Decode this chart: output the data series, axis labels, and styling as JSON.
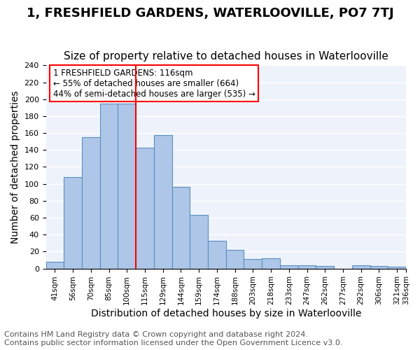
{
  "title": "1, FRESHFIELD GARDENS, WATERLOOVILLE, PO7 7TJ",
  "subtitle": "Size of property relative to detached houses in Waterlooville",
  "xlabel": "Distribution of detached houses by size in Waterlooville",
  "ylabel": "Number of detached properties",
  "bar_values": [
    8,
    108,
    155,
    195,
    195,
    143,
    158,
    96,
    63,
    33,
    22,
    11,
    12,
    4,
    4,
    3,
    0,
    4,
    3,
    2
  ],
  "bar_labels": [
    "41sqm",
    "56sqm",
    "70sqm",
    "85sqm",
    "100sqm",
    "115sqm",
    "129sqm",
    "144sqm",
    "159sqm",
    "174sqm",
    "188sqm",
    "203sqm",
    "218sqm",
    "233sqm",
    "247sqm",
    "262sqm",
    "277sqm",
    "292sqm",
    "306sqm",
    "321sqm"
  ],
  "extra_tick_label": "336sqm",
  "bar_color": "#aec6e8",
  "bar_edge_color": "#5a8fc2",
  "property_line_x": 4.5,
  "annotation_text": "1 FRESHFIELD GARDENS: 116sqm\n← 55% of detached houses are smaller (664)\n44% of semi-detached houses are larger (535) →",
  "annotation_box_color": "white",
  "annotation_box_edge_color": "red",
  "vline_color": "red",
  "ylim": [
    0,
    240
  ],
  "yticks": [
    0,
    20,
    40,
    60,
    80,
    100,
    120,
    140,
    160,
    180,
    200,
    220,
    240
  ],
  "footer_line1": "Contains HM Land Registry data © Crown copyright and database right 2024.",
  "footer_line2": "Contains public sector information licensed under the Open Government Licence v3.0.",
  "background_color": "#eef3fb",
  "title_fontsize": 13,
  "subtitle_fontsize": 11,
  "xlabel_fontsize": 10,
  "ylabel_fontsize": 10,
  "footer_fontsize": 8
}
